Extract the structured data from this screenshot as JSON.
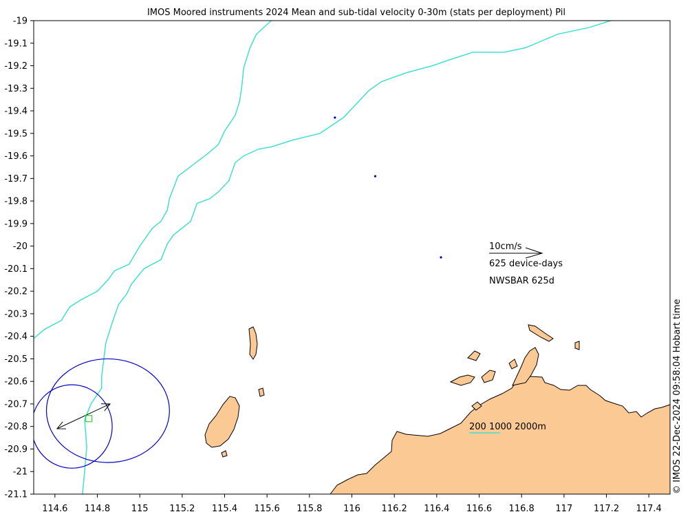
{
  "title": "IMOS Moored instruments 2024 Mean and sub-tidal velocity 0-30m (stats per deployment) Pil",
  "side_label": "© IMOS 22-Dec-2024 09:58:04 Hobart time",
  "legend": {
    "scale_label": "10cm/s",
    "device_days": "625 device-days",
    "station": "NWSBAR 625d",
    "isobaths": "200 1000 2000m"
  },
  "axes": {
    "lon_range": [
      114.5,
      117.5
    ],
    "lat_range": [
      -21.1,
      -19
    ],
    "x_ticks": [
      {
        "value": 114.6,
        "label": "114.6"
      },
      {
        "value": 114.8,
        "label": "114.8"
      },
      {
        "value": 115.0,
        "label": "115"
      },
      {
        "value": 115.2,
        "label": "115.2"
      },
      {
        "value": 115.4,
        "label": "115.4"
      },
      {
        "value": 115.6,
        "label": "115.6"
      },
      {
        "value": 115.8,
        "label": "115.8"
      },
      {
        "value": 116.0,
        "label": "116"
      },
      {
        "value": 116.2,
        "label": "116.2"
      },
      {
        "value": 116.4,
        "label": "116.4"
      },
      {
        "value": 116.6,
        "label": "116.6"
      },
      {
        "value": 116.8,
        "label": "116.8"
      },
      {
        "value": 117.0,
        "label": "117"
      },
      {
        "value": 117.2,
        "label": "117.2"
      },
      {
        "value": 117.4,
        "label": "117.4"
      }
    ],
    "y_ticks": [
      {
        "value": -19.0,
        "label": "-19"
      },
      {
        "value": -19.1,
        "label": "-19.1"
      },
      {
        "value": -19.2,
        "label": "-19.2"
      },
      {
        "value": -19.3,
        "label": "-19.3"
      },
      {
        "value": -19.4,
        "label": "-19.4"
      },
      {
        "value": -19.5,
        "label": "-19.5"
      },
      {
        "value": -19.6,
        "label": "-19.6"
      },
      {
        "value": -19.7,
        "label": "-19.7"
      },
      {
        "value": -19.8,
        "label": "-19.8"
      },
      {
        "value": -19.9,
        "label": "-19.9"
      },
      {
        "value": -20.0,
        "label": "-20"
      },
      {
        "value": -20.1,
        "label": "-20.1"
      },
      {
        "value": -20.2,
        "label": "-20.2"
      },
      {
        "value": -20.3,
        "label": "-20.3"
      },
      {
        "value": -20.4,
        "label": "-20.4"
      },
      {
        "value": -20.5,
        "label": "-20.5"
      },
      {
        "value": -20.6,
        "label": "-20.6"
      },
      {
        "value": -20.7,
        "label": "-20.7"
      },
      {
        "value": -20.8,
        "label": "-20.8"
      },
      {
        "value": -20.9,
        "label": "-20.9"
      },
      {
        "value": -21.0,
        "label": "-21"
      },
      {
        "value": -21.1,
        "label": "-21.1"
      }
    ]
  },
  "colors": {
    "land": "#fbc994",
    "isobath": "#40e0d0",
    "ellipse": "#0000cc",
    "station_marker": "#33cc33",
    "arrow": "#000000",
    "points": "#0000aa"
  },
  "station_point": {
    "lon": 114.76,
    "lat": -20.765
  },
  "mean_velocity_arrow": {
    "from": [
      114.61,
      -20.81
    ],
    "to": [
      114.86,
      -20.7
    ]
  },
  "variance_ellipses": [
    {
      "center": [
        114.68,
        -20.8
      ],
      "semi_axis_lon": 0.19,
      "semi_axis_lat": 0.185
    },
    {
      "center": [
        114.85,
        -20.73
      ],
      "semi_axis_lon": 0.29,
      "semi_axis_lat": 0.23
    }
  ],
  "other_points": [
    {
      "lon": 115.92,
      "lat": -19.43
    },
    {
      "lon": 116.11,
      "lat": -19.69
    },
    {
      "lon": 116.42,
      "lat": -20.05
    }
  ],
  "isobath_lines": [
    {
      "name": "200",
      "points": [
        [
          114.5,
          -20.41
        ],
        [
          114.55,
          -20.37
        ],
        [
          114.63,
          -20.33
        ],
        [
          114.67,
          -20.27
        ],
        [
          114.72,
          -20.24
        ],
        [
          114.8,
          -20.2
        ],
        [
          114.85,
          -20.15
        ],
        [
          114.88,
          -20.11
        ],
        [
          114.95,
          -20.08
        ],
        [
          115.0,
          -20.0
        ],
        [
          115.06,
          -19.92
        ],
        [
          115.1,
          -19.89
        ],
        [
          115.13,
          -19.84
        ],
        [
          115.14,
          -19.79
        ],
        [
          115.18,
          -19.69
        ],
        [
          115.25,
          -19.64
        ],
        [
          115.32,
          -19.59
        ],
        [
          115.37,
          -19.55
        ],
        [
          115.4,
          -19.49
        ],
        [
          115.45,
          -19.42
        ],
        [
          115.47,
          -19.36
        ],
        [
          115.48,
          -19.3
        ],
        [
          115.49,
          -19.21
        ],
        [
          115.52,
          -19.12
        ],
        [
          115.55,
          -19.06
        ],
        [
          115.62,
          -19.0
        ]
      ]
    },
    {
      "name": "1000",
      "points": [
        [
          114.73,
          -21.1
        ],
        [
          114.74,
          -21.0
        ],
        [
          114.75,
          -20.89
        ],
        [
          114.74,
          -20.77
        ],
        [
          114.77,
          -20.7
        ],
        [
          114.82,
          -20.63
        ],
        [
          114.82,
          -20.58
        ],
        [
          114.84,
          -20.43
        ],
        [
          114.87,
          -20.34
        ],
        [
          114.9,
          -20.26
        ],
        [
          114.94,
          -20.21
        ],
        [
          114.96,
          -20.17
        ],
        [
          115.02,
          -20.1
        ],
        [
          115.1,
          -20.06
        ],
        [
          115.13,
          -19.99
        ],
        [
          115.16,
          -19.95
        ],
        [
          115.24,
          -19.89
        ],
        [
          115.27,
          -19.81
        ],
        [
          115.33,
          -19.79
        ],
        [
          115.37,
          -19.76
        ],
        [
          115.42,
          -19.71
        ],
        [
          115.45,
          -19.63
        ],
        [
          115.49,
          -19.6
        ],
        [
          115.56,
          -19.57
        ],
        [
          115.62,
          -19.56
        ],
        [
          115.72,
          -19.53
        ],
        [
          115.85,
          -19.5
        ],
        [
          115.96,
          -19.43
        ],
        [
          116.08,
          -19.31
        ],
        [
          116.14,
          -19.27
        ],
        [
          116.26,
          -19.23
        ],
        [
          116.38,
          -19.2
        ],
        [
          116.44,
          -19.18
        ],
        [
          116.57,
          -19.14
        ],
        [
          116.72,
          -19.14
        ],
        [
          116.82,
          -19.12
        ],
        [
          116.97,
          -19.06
        ],
        [
          117.12,
          -19.03
        ],
        [
          117.22,
          -19.0
        ]
      ]
    }
  ]
}
